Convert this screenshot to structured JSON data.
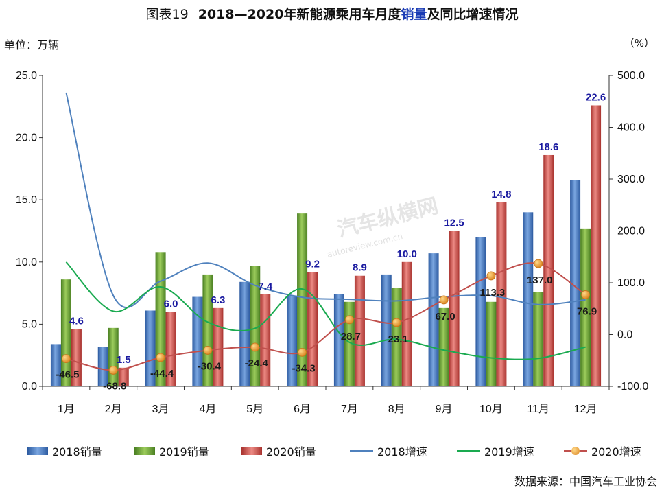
{
  "header": {
    "prefix": "图表19",
    "title_part1": "2018—2020年新能源乘用车月度",
    "title_highlight": "销量",
    "title_part2": "及同比增速情况",
    "unit_left": "单位：万辆",
    "unit_right": "（%）"
  },
  "source": "数据来源：中国汽车工业协会",
  "watermark": {
    "main": "汽车纵横网",
    "sub": "autoreview.com.cn"
  },
  "colors": {
    "bar2018": "#4a7ec8",
    "bar2019": "#6aa13a",
    "bar2020": "#d0524c",
    "line2018": "#4f81bd",
    "line2019": "#1aaa50",
    "line2020": "#c0504d",
    "marker2020": "#e79a2c",
    "axis": "#333333"
  },
  "chart_data": {
    "type": "bar",
    "categories": [
      "1月",
      "2月",
      "3月",
      "4月",
      "5月",
      "6月",
      "7月",
      "8月",
      "9月",
      "10月",
      "11月",
      "12月"
    ],
    "ylim_left": [
      0,
      25
    ],
    "yticks_left": [
      "0.0",
      "5.0",
      "10.0",
      "15.0",
      "20.0",
      "25.0"
    ],
    "ylim_right": [
      -100,
      500
    ],
    "yticks_right": [
      "-100.0",
      "0.0",
      "100.0",
      "200.0",
      "300.0",
      "400.0",
      "500.0"
    ],
    "bar_series": [
      {
        "name": "2018销量",
        "values": [
          3.4,
          3.2,
          6.1,
          7.2,
          8.4,
          7.3,
          7.4,
          9.0,
          10.7,
          12.0,
          14.0,
          16.6
        ]
      },
      {
        "name": "2019销量",
        "values": [
          8.6,
          4.7,
          10.8,
          9.0,
          9.7,
          13.9,
          6.8,
          7.9,
          6.3,
          6.8,
          7.6,
          12.7
        ]
      },
      {
        "name": "2020销量",
        "values": [
          4.6,
          1.5,
          6.0,
          6.3,
          7.4,
          9.2,
          8.9,
          10.0,
          12.5,
          14.8,
          18.6,
          22.6
        ],
        "labels": [
          "4.6",
          "1.5",
          "6.0",
          "6.3",
          "7.4",
          "9.2",
          "8.9",
          "10.0",
          "12.5",
          "14.8",
          "18.6",
          "22.6"
        ]
      }
    ],
    "line_series": [
      {
        "name": "2018增速",
        "axis": "right",
        "values": [
          467,
          75,
          103,
          138,
          95,
          72,
          68,
          65,
          73,
          75,
          58,
          67
        ]
      },
      {
        "name": "2019增速",
        "axis": "right",
        "values": [
          140,
          45,
          92,
          24,
          12,
          88,
          -15,
          -9,
          -30,
          -45,
          -46,
          -24
        ]
      },
      {
        "name": "2020增速",
        "axis": "right",
        "values": [
          -46.5,
          -68.8,
          -44.4,
          -30.4,
          -24.4,
          -34.3,
          28.7,
          23.1,
          67.0,
          113.3,
          137.0,
          76.9
        ],
        "labels": [
          "-46.5",
          "-68.8",
          "-44.4",
          "-30.4",
          "-24.4",
          "-34.3",
          "28.7",
          "23.1",
          "67.0",
          "113.3",
          "137.0",
          "76.9"
        ]
      }
    ],
    "legend": [
      "2018销量",
      "2019销量",
      "2020销量",
      "2018增速",
      "2019增速",
      "2020增速"
    ],
    "legend_position": "bottom",
    "grid": false
  }
}
